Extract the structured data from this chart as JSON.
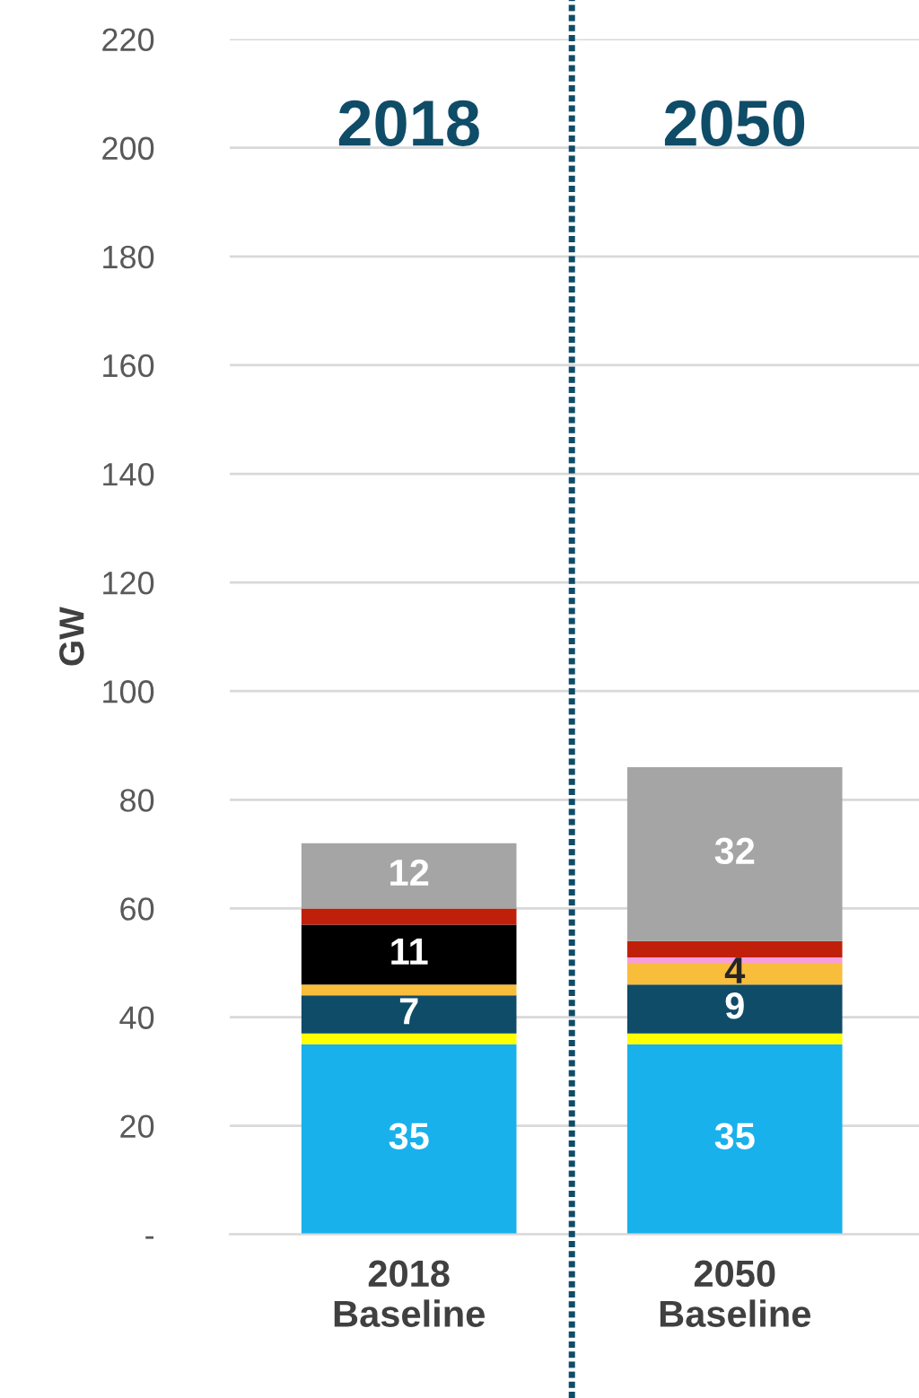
{
  "chart_data": {
    "type": "bar",
    "stacked": true,
    "ylabel": "GW",
    "categories": [
      "2018\nBaseline",
      "2050\nBaseline"
    ],
    "series": [
      {
        "color": "#19b1ec",
        "values": [
          35,
          35
        ],
        "value_labels": [
          "35",
          "35"
        ]
      },
      {
        "color": "#ffff00",
        "values": [
          2,
          2
        ],
        "value_labels": [
          null,
          null
        ]
      },
      {
        "color": "#0f4c68",
        "values": [
          7,
          9
        ],
        "value_labels": [
          "7",
          "9"
        ]
      },
      {
        "color": "#f9bd3c",
        "values": [
          2,
          4
        ],
        "value_labels": [
          null,
          "4"
        ]
      },
      {
        "color": "#f79ee0",
        "values": [
          null,
          1
        ],
        "value_labels": [
          null,
          null
        ]
      },
      {
        "color": "#000000",
        "values": [
          11,
          null
        ],
        "value_labels": [
          "11",
          null
        ]
      },
      {
        "color": "#c0200a",
        "values": [
          3,
          3
        ],
        "value_labels": [
          null,
          null
        ]
      },
      {
        "color": "#a5a5a5",
        "values": [
          12,
          32
        ],
        "value_labels": [
          "12",
          "32"
        ]
      }
    ],
    "ylim": [
      0,
      220
    ],
    "yticks": [
      {
        "value": 0,
        "label": "-"
      },
      20,
      40,
      60,
      80,
      100,
      120,
      140,
      160,
      180,
      200,
      220
    ],
    "grid": "y",
    "annotations": [
      "2018",
      "2050"
    ]
  }
}
